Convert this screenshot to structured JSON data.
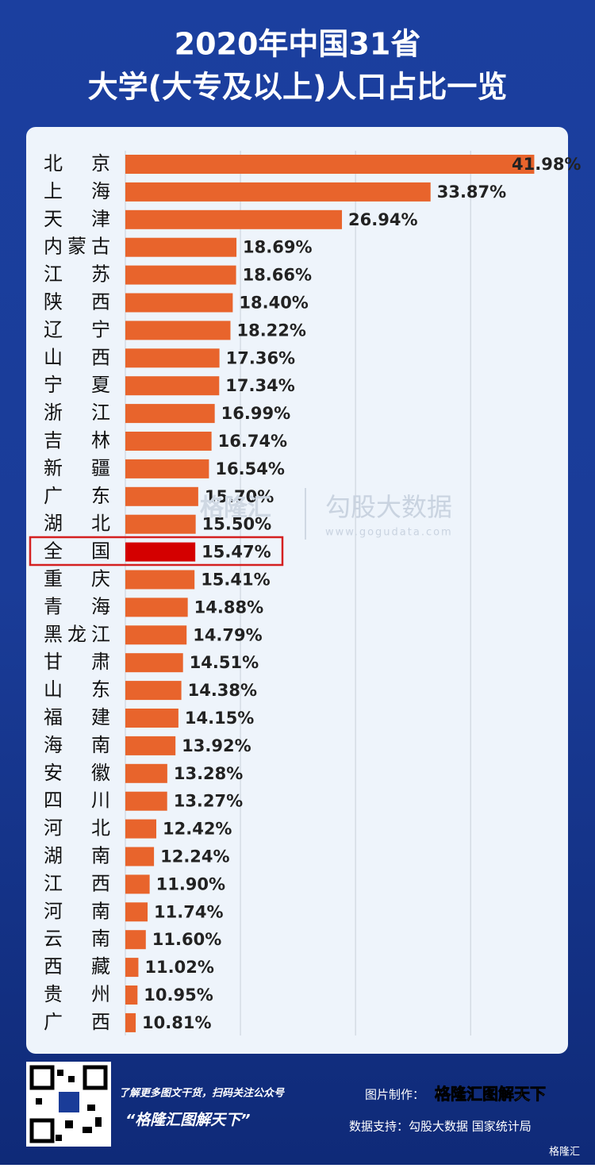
{
  "chart_data": {
    "type": "bar",
    "orientation": "horizontal",
    "title": "2020年中国31省",
    "subtitle": "大学(大专及以上)人口占比一览",
    "categories": [
      "北京",
      "上海",
      "天津",
      "内蒙古",
      "江苏",
      "陕西",
      "辽宁",
      "山西",
      "宁夏",
      "浙江",
      "吉林",
      "新疆",
      "广东",
      "湖北",
      "全国",
      "重庆",
      "青海",
      "黑龙江",
      "甘肃",
      "山东",
      "福建",
      "海南",
      "安徽",
      "四川",
      "河北",
      "湖南",
      "江西",
      "河南",
      "云南",
      "西藏",
      "贵州",
      "广西"
    ],
    "values": [
      41.98,
      33.87,
      26.94,
      18.69,
      18.66,
      18.4,
      18.22,
      17.36,
      17.34,
      16.99,
      16.74,
      16.54,
      15.7,
      15.5,
      15.47,
      15.41,
      14.88,
      14.79,
      14.51,
      14.38,
      14.15,
      13.92,
      13.28,
      13.27,
      12.42,
      12.24,
      11.9,
      11.74,
      11.6,
      11.02,
      10.95,
      10.81
    ],
    "value_labels": [
      "41.98%",
      "33.87%",
      "26.94%",
      "18.69%",
      "18.66%",
      "18.40%",
      "18.22%",
      "17.36%",
      "17.34%",
      "16.99%",
      "16.74%",
      "16.54%",
      "15.70%",
      "15.50%",
      "15.47%",
      "15.41%",
      "14.88%",
      "14.79%",
      "14.51%",
      "14.38%",
      "14.15%",
      "13.92%",
      "13.28%",
      "13.27%",
      "12.42%",
      "12.24%",
      "11.90%",
      "11.74%",
      "11.60%",
      "11.02%",
      "10.95%",
      "10.81%"
    ],
    "color": "#e8642c",
    "highlight_index": 14,
    "highlight_color": "#d40000",
    "xlim": [
      10,
      44
    ],
    "xticks": [
      10,
      19,
      28,
      37
    ],
    "grid": true
  },
  "watermark": {
    "brand": "格隆汇",
    "name": "勾股大数据",
    "url": "www.gogudata.com"
  },
  "footer": {
    "note": "了解更多图文干货，扫码关注公众号",
    "account": "“格隆汇图解天下”",
    "made_by_label": "图片制作：",
    "made_by": "格隆汇图解天下",
    "source": "数据支持：勾股大数据 国家统计局",
    "logo": "格隆汇"
  }
}
